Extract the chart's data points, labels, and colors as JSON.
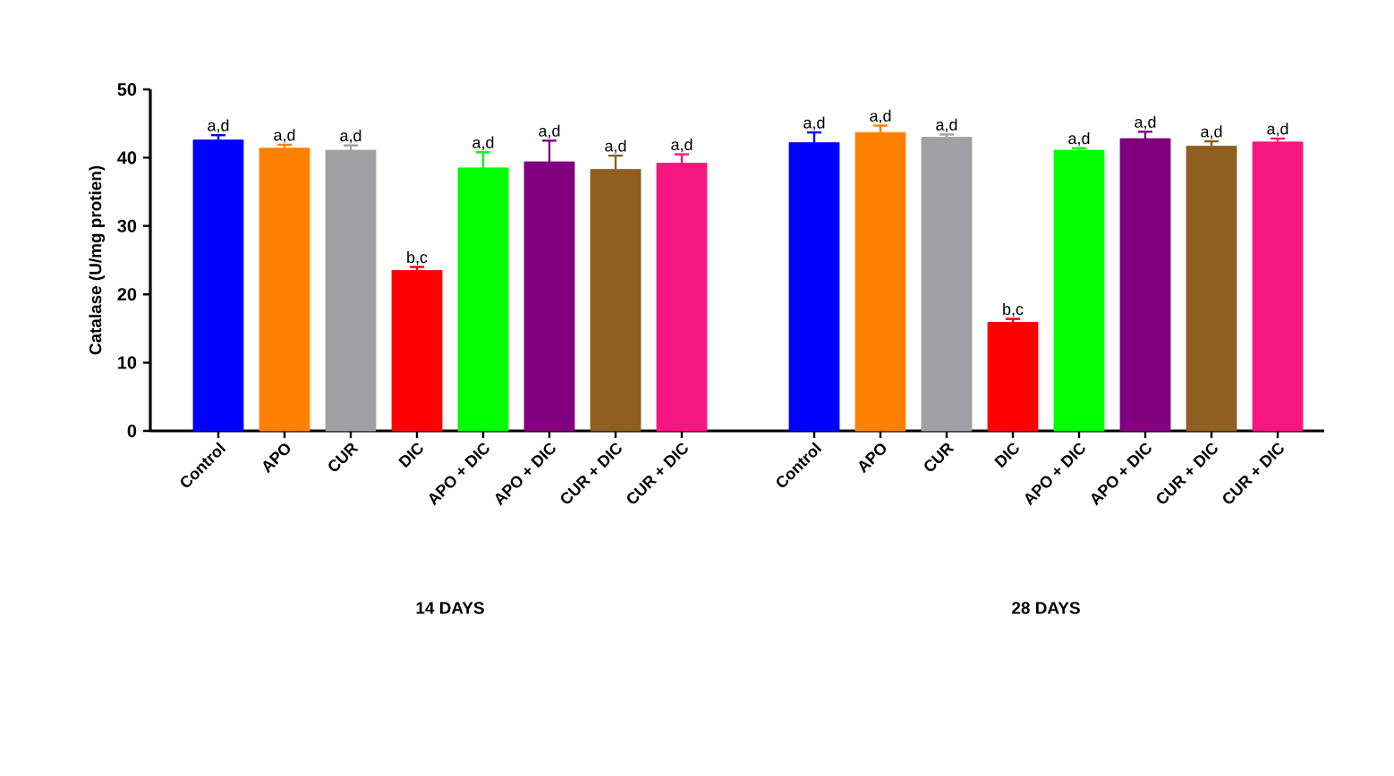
{
  "chart_data": {
    "type": "bar",
    "ylabel": "Catalase (U/mg protien)",
    "categories": [
      "Control",
      "APO",
      "CUR",
      "DIC",
      "APO + DIC",
      "APO + DIC",
      "CUR + DIC",
      "CUR + DIC",
      null,
      "Control",
      "APO",
      "CUR",
      "DIC",
      "APO + DIC",
      "APO + DIC",
      "CUR + DIC",
      "CUR + DIC"
    ],
    "values": [
      42.6,
      41.4,
      41.1,
      23.5,
      38.5,
      39.4,
      38.3,
      39.2,
      null,
      42.2,
      43.7,
      43.0,
      15.9,
      41.1,
      42.8,
      41.7,
      42.3
    ],
    "errors": [
      0.7,
      0.5,
      0.7,
      0.5,
      2.3,
      3.1,
      2.0,
      1.3,
      null,
      1.5,
      1.0,
      0.4,
      0.5,
      0.3,
      1.0,
      0.7,
      0.5
    ],
    "colors": [
      "#0000ff",
      "#ff8000",
      "#a0a0a4",
      "#ff0000",
      "#00ff00",
      "#800080",
      "#8f5e20",
      "#f7167f",
      null,
      "#0000ff",
      "#ff8000",
      "#a0a0a4",
      "#ff0000",
      "#00ff00",
      "#800080",
      "#8f5e20",
      "#f7167f"
    ],
    "value_labels": [
      "a,d",
      "a,d",
      "a,d",
      "b,c",
      "a,d",
      "a,d",
      "a,d",
      "a,d",
      null,
      "a,d",
      "a,d",
      "a,d",
      "b,c",
      "a,d",
      "a,d",
      "a,d",
      "a,d"
    ],
    "annotations": [
      "14 DAYS",
      "28 DAYS"
    ],
    "ylim": [
      0,
      50
    ],
    "yticks": [
      0,
      10,
      20,
      30,
      40,
      50
    ],
    "grid": false
  }
}
